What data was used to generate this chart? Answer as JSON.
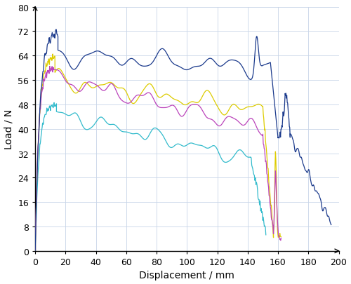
{
  "title": "",
  "xlabel": "Displacement / mm",
  "ylabel": "Load / N",
  "xlim": [
    0,
    200
  ],
  "ylim": [
    0,
    80
  ],
  "xticks": [
    0,
    20,
    40,
    60,
    80,
    100,
    120,
    140,
    160,
    180,
    200
  ],
  "yticks": [
    0,
    8,
    16,
    24,
    32,
    40,
    48,
    56,
    64,
    72,
    80
  ],
  "grid": true,
  "colors": {
    "blue": "#1b3a8c",
    "magenta": "#bb44bb",
    "yellow": "#ddcc00",
    "cyan": "#33bbcc"
  },
  "figsize": [
    5.0,
    4.06
  ],
  "dpi": 100
}
